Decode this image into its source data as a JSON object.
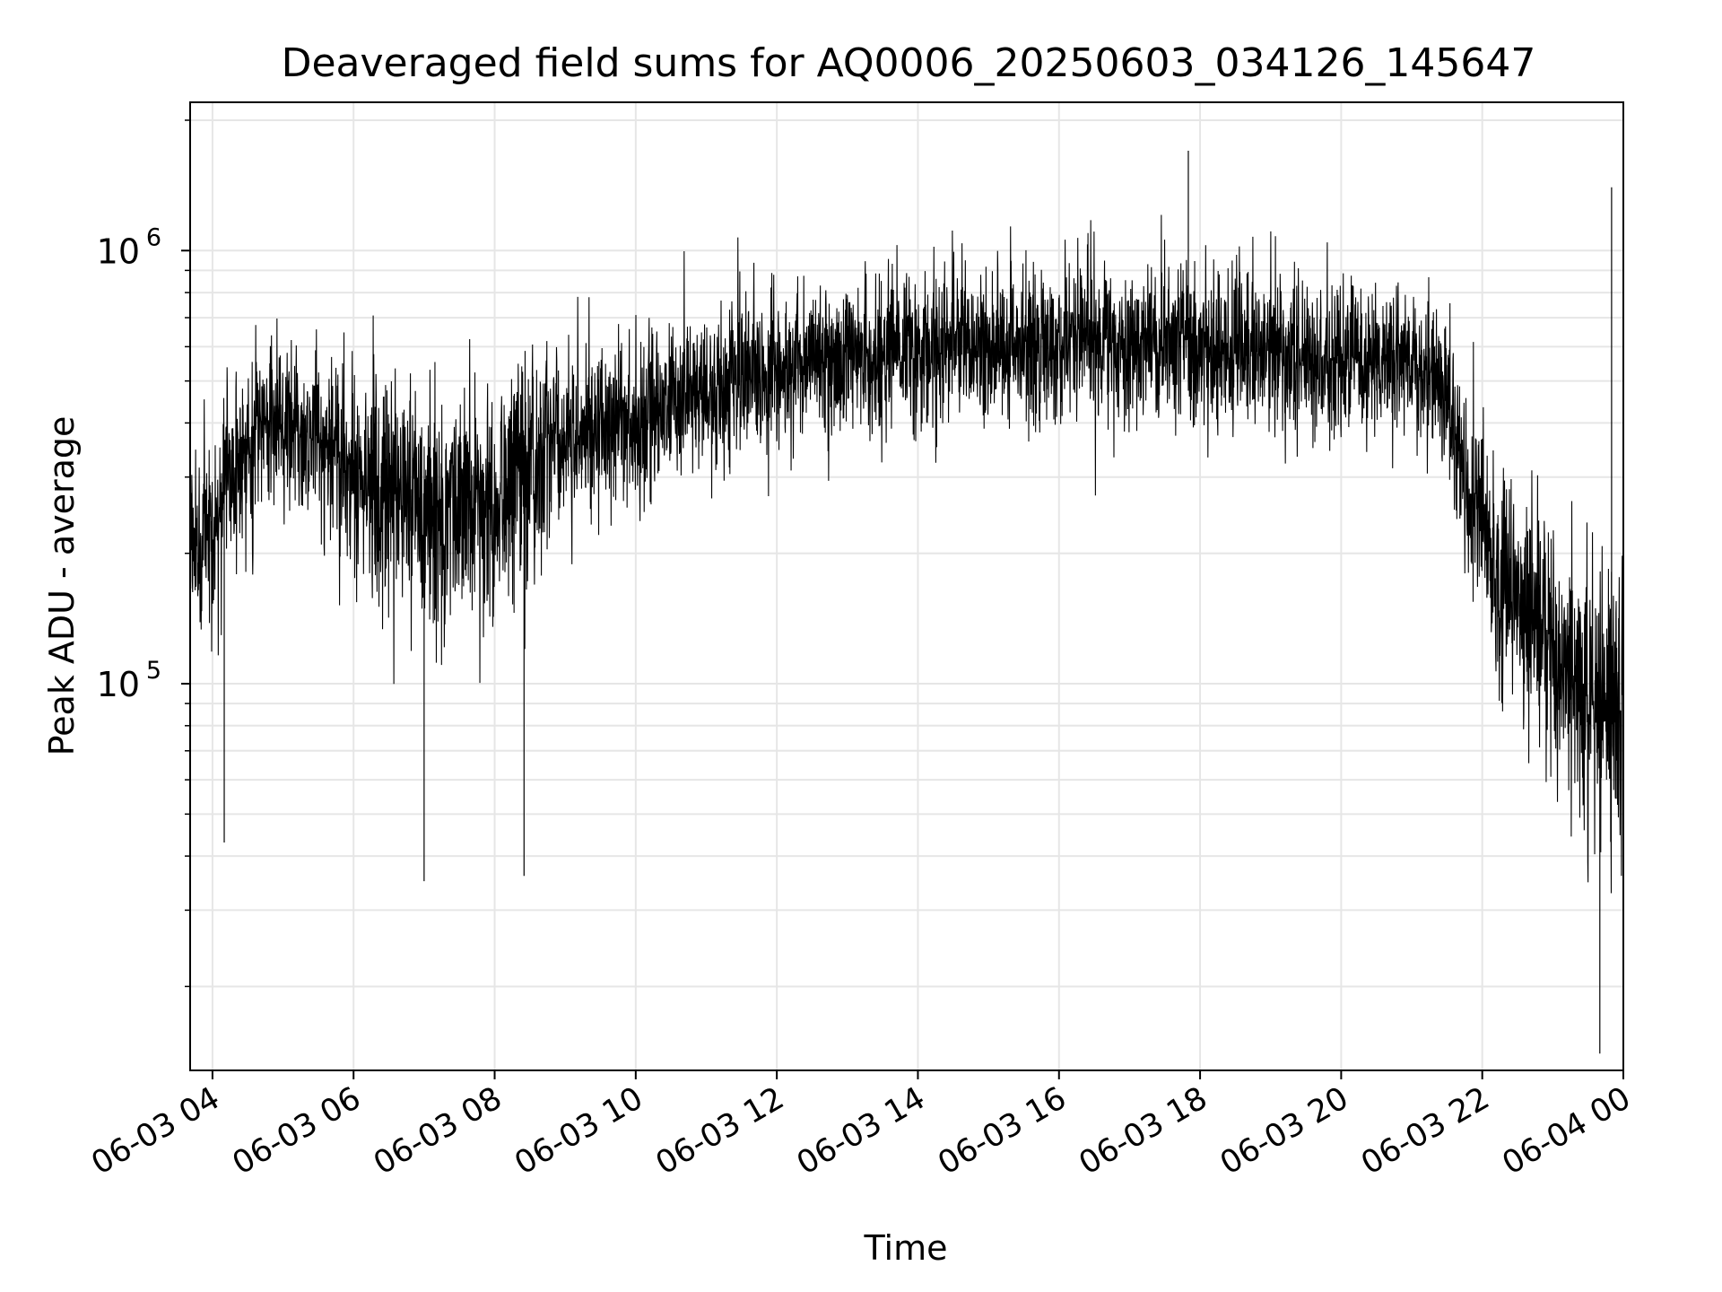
{
  "chart_data": {
    "type": "line",
    "title": "Deaveraged field sums for AQ0006_20250603_034126_145647",
    "xlabel": "Time",
    "ylabel": "Peak ADU - average",
    "yscale": "log",
    "ylim": [
      12800,
      2200000
    ],
    "xlim": [
      "2025-06-03 03:41",
      "2025-06-04 00:00"
    ],
    "grid": true,
    "line_color": "#000000",
    "grid_color": "#e6e6e6",
    "x_ticks": [
      "06-03 04",
      "06-03 06",
      "06-03 08",
      "06-03 10",
      "06-03 12",
      "06-03 14",
      "06-03 16",
      "06-03 18",
      "06-03 20",
      "06-03 22",
      "06-04 00"
    ],
    "y_ticks": [
      {
        "base": "10",
        "exp": "5",
        "value": 100000
      },
      {
        "base": "10",
        "exp": "6",
        "value": 1000000
      }
    ],
    "series": [
      {
        "baseline_curve": [
          [
            "2025-06-03 03:41",
            180000
          ],
          [
            "2025-06-03 04:15",
            300000
          ],
          [
            "2025-06-03 04:45",
            400000
          ],
          [
            "2025-06-03 05:15",
            380000
          ],
          [
            "2025-06-03 05:45",
            330000
          ],
          [
            "2025-06-03 06:30",
            270000
          ],
          [
            "2025-06-03 07:15",
            240000
          ],
          [
            "2025-06-03 08:00",
            260000
          ],
          [
            "2025-06-03 08:30",
            330000
          ],
          [
            "2025-06-03 09:00",
            380000
          ],
          [
            "2025-06-03 10:00",
            400000
          ],
          [
            "2025-06-03 11:00",
            470000
          ],
          [
            "2025-06-03 12:00",
            520000
          ],
          [
            "2025-06-03 13:00",
            570000
          ],
          [
            "2025-06-03 14:00",
            590000
          ],
          [
            "2025-06-03 15:00",
            600000
          ],
          [
            "2025-06-03 16:00",
            610000
          ],
          [
            "2025-06-03 17:00",
            600000
          ],
          [
            "2025-06-03 18:00",
            600000
          ],
          [
            "2025-06-03 19:00",
            580000
          ],
          [
            "2025-06-03 20:00",
            560000
          ],
          [
            "2025-06-03 21:00",
            560000
          ],
          [
            "2025-06-03 21:30",
            480000
          ],
          [
            "2025-06-03 21:45",
            280000
          ],
          [
            "2025-06-03 22:15",
            180000
          ],
          [
            "2025-06-03 22:45",
            140000
          ],
          [
            "2025-06-03 23:15",
            110000
          ],
          [
            "2025-06-03 23:45",
            90000
          ],
          [
            "2025-06-04 00:00",
            100000
          ]
        ],
        "spread": [
          [
            "2025-06-03 03:41",
            2.2
          ],
          [
            "2025-06-03 05:30",
            2.0
          ],
          [
            "2025-06-03 07:00",
            2.7
          ],
          [
            "2025-06-03 08:20",
            2.7
          ],
          [
            "2025-06-03 09:00",
            1.9
          ],
          [
            "2025-06-03 12:00",
            1.9
          ],
          [
            "2025-06-03 16:00",
            1.9
          ],
          [
            "2025-06-03 20:00",
            1.9
          ],
          [
            "2025-06-03 21:20",
            1.9
          ],
          [
            "2025-06-03 22:30",
            2.4
          ],
          [
            "2025-06-04 00:00",
            3.3
          ]
        ],
        "extremes": [
          [
            "2025-06-03 04:10",
            43000
          ],
          [
            "2025-06-03 07:00",
            35000
          ],
          [
            "2025-06-03 08:25",
            36000
          ],
          [
            "2025-06-03 17:50",
            1700000
          ],
          [
            "2025-06-03 23:40",
            14000
          ],
          [
            "2025-06-03 23:50",
            1400000
          ]
        ]
      }
    ]
  }
}
